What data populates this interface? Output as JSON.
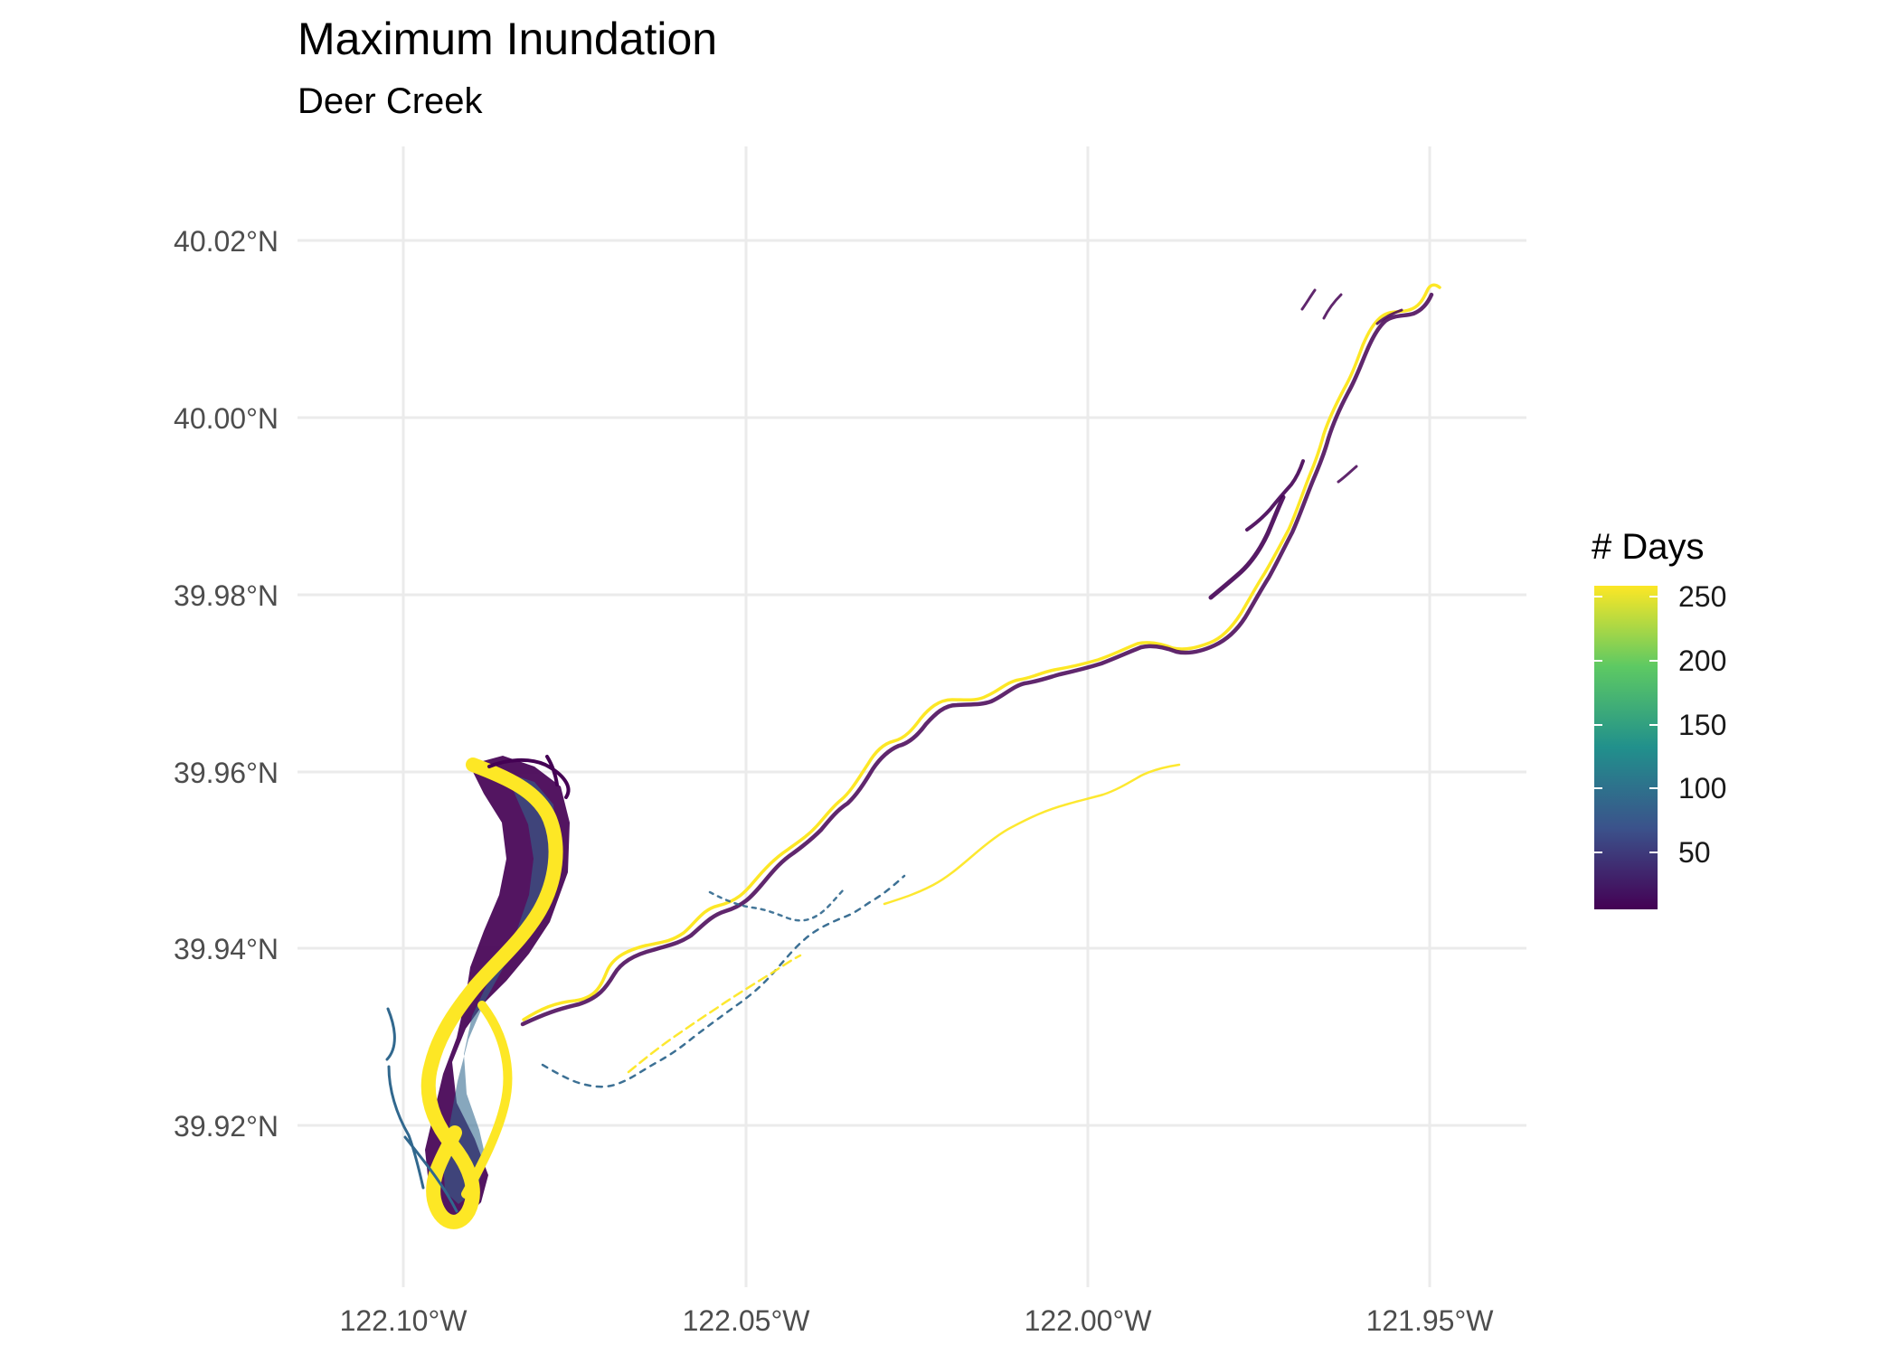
{
  "header": {
    "title": "Maximum Inundation",
    "subtitle": "Deer Creek"
  },
  "axes": {
    "x_ticks": [
      "122.10°W",
      "122.05°W",
      "122.00°W",
      "121.95°W"
    ],
    "y_ticks": [
      "40.02°N",
      "40.00°N",
      "39.98°N",
      "39.96°N",
      "39.94°N",
      "39.92°N"
    ]
  },
  "legend": {
    "title": "# Days",
    "ticks": [
      "250",
      "200",
      "150",
      "100",
      "50"
    ],
    "range": [
      1,
      255
    ],
    "colors": [
      "#440154",
      "#3b528b",
      "#21908c",
      "#5dc963",
      "#fde725"
    ]
  },
  "style": {
    "background": "#ffffff",
    "grid_color": "#ebebeb",
    "low_color": "#440154",
    "mid_color": "#31688e",
    "high_color": "#fde725"
  }
}
